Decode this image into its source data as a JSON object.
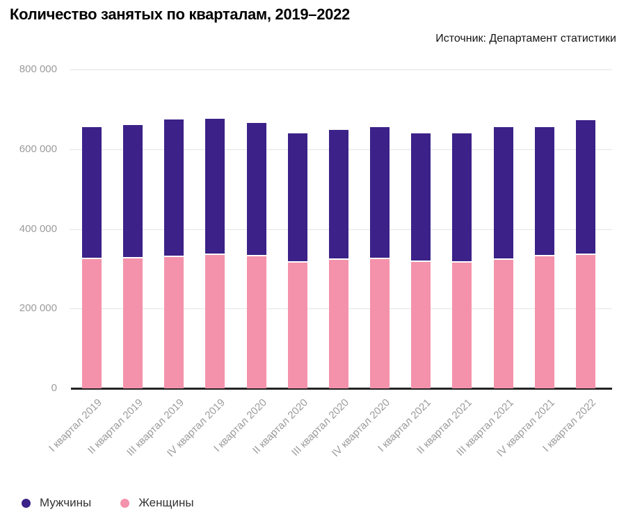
{
  "header": {
    "title": "Количество занятых по кварталам, 2019–2022",
    "source": "Источник: Департамент статистики"
  },
  "colors": {
    "men": "#3b2188",
    "women": "#f492ab",
    "grid": "#e4e4e4",
    "axis": "#222222",
    "tick_label": "#9b9b9b",
    "legend_text": "#333333",
    "background": "#ffffff"
  },
  "legend": {
    "items": [
      {
        "label": "Мужчины",
        "color": "#3b2188"
      },
      {
        "label": "Женщины",
        "color": "#f492ab"
      }
    ]
  },
  "chart_data": {
    "type": "bar",
    "stacked": true,
    "title": "Количество занятых по кварталам, 2019–2022",
    "categories": [
      "I квартал 2019",
      "II квартал 2019",
      "III квартал 2019",
      "IV квартал 2019",
      "I квартал 2020",
      "II квартал 2020",
      "III квартал 2020",
      "IV квартал 2020",
      "I квартал 2021",
      "II квартал 2021",
      "III квартал 2021",
      "IV квартал 2021",
      "I квартал 2022"
    ],
    "series": [
      {
        "name": "Мужчины",
        "color": "#3b2188",
        "stack_position": "top",
        "values": [
          331000,
          335000,
          344000,
          342000,
          333000,
          324000,
          326000,
          331000,
          322000,
          324000,
          333000,
          324000,
          337000
        ]
      },
      {
        "name": "Женщины",
        "color": "#f492ab",
        "stack_position": "bottom",
        "values": [
          325000,
          326000,
          330000,
          335000,
          332000,
          316000,
          323000,
          325000,
          318000,
          316000,
          323000,
          332000,
          335000
        ]
      }
    ],
    "totals": [
      656000,
      661000,
      674000,
      677000,
      665000,
      640000,
      649000,
      656000,
      640000,
      640000,
      656000,
      656000,
      672000
    ],
    "ylim": [
      0,
      800000
    ],
    "yticks": [
      0,
      200000,
      400000,
      600000,
      800000
    ],
    "ytick_labels": [
      "0",
      "200 000",
      "400 000",
      "600 000",
      "800 000"
    ],
    "grid": true,
    "legend_position": "bottom-left"
  }
}
